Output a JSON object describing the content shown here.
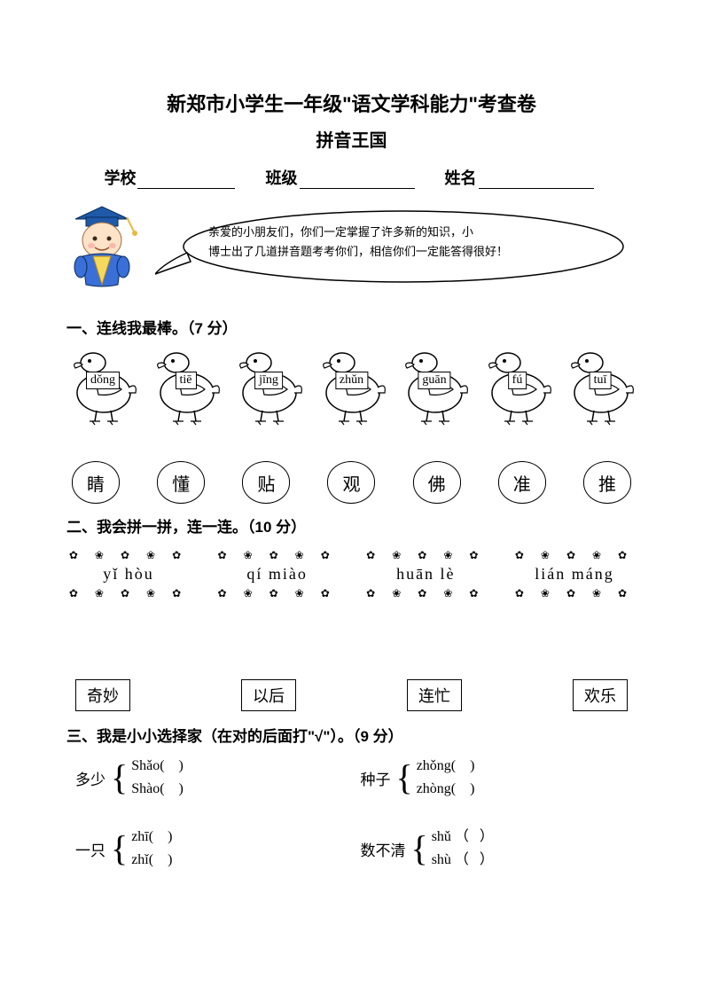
{
  "header": {
    "title": "新郑市小学生一年级\"语文学科能力\"考查卷",
    "subtitle": "拼音王国",
    "school_label": "学校",
    "class_label": "班级",
    "name_label": "姓名"
  },
  "bubble": {
    "line1": "亲爱的小朋友们，你们一定掌握了许多新的知识，小",
    "line2": "博士出了几道拼音题考考你们，相信你们一定能答得很好！"
  },
  "section1": {
    "head": "一、连线我最棒。（7 分）",
    "pinyin": [
      "dǒng",
      "tiē",
      "jīng",
      "zhǔn",
      "guān",
      "fú",
      "tuī"
    ],
    "chars": [
      "睛",
      "懂",
      "贴",
      "观",
      "佛",
      "准",
      "推"
    ]
  },
  "section2": {
    "head": "二、我会拼一拼，连一连。（10 分）",
    "pinyin": [
      "yǐ  hòu",
      "qí  miào",
      "huān lè",
      "lián  máng"
    ],
    "words": [
      "奇妙",
      "以后",
      "连忙",
      "欢乐"
    ]
  },
  "section3": {
    "head": "三、我是小小选择家（在对的后面打\"√\"）。（9 分）",
    "items": [
      {
        "word": "多少",
        "opts": [
          "Shǎo(    )",
          "Shào(    )"
        ]
      },
      {
        "word": "种子",
        "opts": [
          "zhǒng(    )",
          "zhòng(    )"
        ]
      },
      {
        "word": "一只",
        "opts": [
          "zhī(    )",
          "zhǐ(    )"
        ]
      },
      {
        "word": "数不清",
        "opts": [
          "shǔ （   ）",
          "shù （   ）"
        ]
      }
    ]
  },
  "colors": {
    "hat": "#1e5aa8",
    "tassel": "#e7b93f",
    "face": "#fde4c8",
    "robe_outer": "#3a6fd8",
    "robe_inner": "#f4d95a",
    "duck_body": "#ffffff",
    "circle_border": "#000000"
  }
}
